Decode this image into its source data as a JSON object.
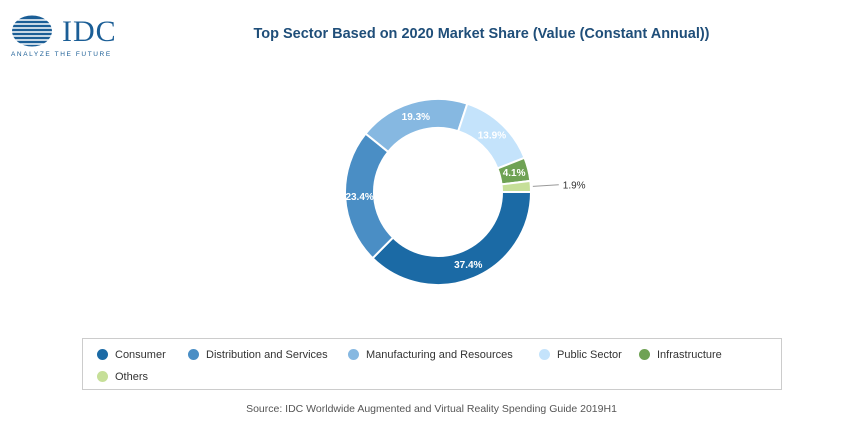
{
  "logo": {
    "word": "IDC",
    "tagline": "ANALYZE THE FUTURE"
  },
  "chart_data": {
    "type": "pie",
    "variant": "donut",
    "title": "Top Sector Based on 2020 Market Share (Value (Constant Annual))",
    "unit": "%",
    "slices": [
      {
        "label": "Consumer",
        "value": 37.4,
        "display": "37.4%",
        "color": "#1b6aa5",
        "label_color": "#ffffff"
      },
      {
        "label": "Distribution and Services",
        "value": 23.4,
        "display": "23.4%",
        "color": "#4a8ec5",
        "label_color": "#ffffff"
      },
      {
        "label": "Manufacturing and Resources",
        "value": 19.3,
        "display": "19.3%",
        "color": "#86b8e1",
        "label_color": "#ffffff"
      },
      {
        "label": "Public Sector",
        "value": 13.9,
        "display": "13.9%",
        "color": "#c4e3fb",
        "label_color": "#ffffff"
      },
      {
        "label": "Infrastructure",
        "value": 4.1,
        "display": "4.1%",
        "color": "#6fa254",
        "label_color": "#ffffff"
      },
      {
        "label": "Others",
        "value": 1.9,
        "display": "1.9%",
        "color": "#c6df98",
        "label_color": "#333333"
      }
    ],
    "legend_position": "bottom"
  },
  "source": "Source: IDC Worldwide Augmented and Virtual Reality Spending Guide 2019H1"
}
